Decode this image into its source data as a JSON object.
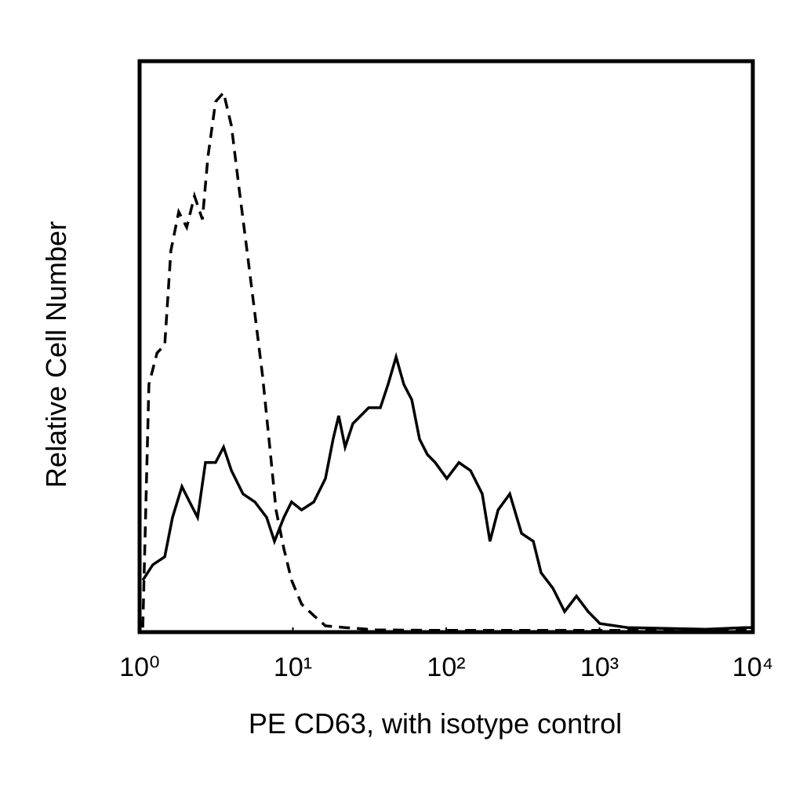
{
  "chart_data": {
    "type": "line",
    "x_label": "PE CD63, with isotype control",
    "y_label": "Relative Cell Number",
    "log_x": true,
    "xlim": [
      1,
      10000
    ],
    "ylim": [
      0,
      100
    ],
    "xticks": [
      {
        "value": 1,
        "label": "10⁰"
      },
      {
        "value": 10,
        "label": "10¹"
      },
      {
        "value": 100,
        "label": "10²"
      },
      {
        "value": 1000,
        "label": "10³"
      },
      {
        "value": 10000,
        "label": "10⁴"
      }
    ],
    "series": [
      {
        "color": "#000000",
        "dashed": false,
        "x": [
          1.05,
          1.22,
          1.46,
          1.64,
          1.89,
          2.12,
          2.39,
          2.69,
          3.13,
          3.53,
          3.97,
          4.73,
          5.65,
          6.74,
          7.58,
          8.73,
          9.8,
          11.4,
          13.7,
          16.3,
          18.3,
          19.9,
          21.9,
          24.6,
          27.7,
          31.2,
          37.2,
          41.8,
          47.1,
          52.9,
          59.6,
          67,
          75.4,
          84.8,
          101,
          121,
          144,
          172,
          193,
          218,
          260,
          310,
          370,
          416,
          496,
          592,
          707,
          843,
          1006,
          1520,
          4930,
          8890,
          9770
        ],
        "values": [
          9.1,
          11.8,
          13.2,
          20.1,
          25.5,
          22.8,
          20.1,
          29.7,
          29.7,
          32.4,
          28.3,
          24.2,
          22.8,
          20.1,
          15.9,
          20.1,
          22.8,
          21.4,
          22.8,
          26.9,
          33.8,
          37.9,
          32.4,
          36.5,
          37.9,
          39.3,
          39.3,
          43.4,
          48.2,
          43.4,
          40.7,
          33.8,
          31.1,
          29.7,
          26.9,
          29.7,
          28.3,
          24.2,
          15.9,
          21.4,
          24.2,
          17.3,
          15.9,
          10.4,
          7.7,
          3.6,
          6.3,
          3.6,
          1.5,
          0.8,
          0.5,
          0.8,
          0.8
        ]
      },
      {
        "color": "#000000",
        "dashed": true,
        "x": [
          1.05,
          1.15,
          1.3,
          1.46,
          1.6,
          1.8,
          2.03,
          2.28,
          2.57,
          2.79,
          3.13,
          3.53,
          3.97,
          4.46,
          5.02,
          5.65,
          6.35,
          7.15,
          7.76,
          8.73,
          9.8,
          11.4,
          13.7,
          16.3,
          21.9,
          35,
          80,
          468,
          10000
        ],
        "values": [
          0.8,
          43.4,
          48.9,
          50.3,
          66.8,
          73.6,
          70.9,
          76.4,
          72.3,
          83.2,
          92.9,
          94.5,
          88.7,
          77.7,
          66.8,
          55.8,
          44.8,
          31.1,
          21.4,
          14.6,
          9.1,
          4.9,
          2.9,
          1.1,
          0.8,
          0.4,
          0.3,
          0.3,
          0.3
        ]
      }
    ]
  }
}
